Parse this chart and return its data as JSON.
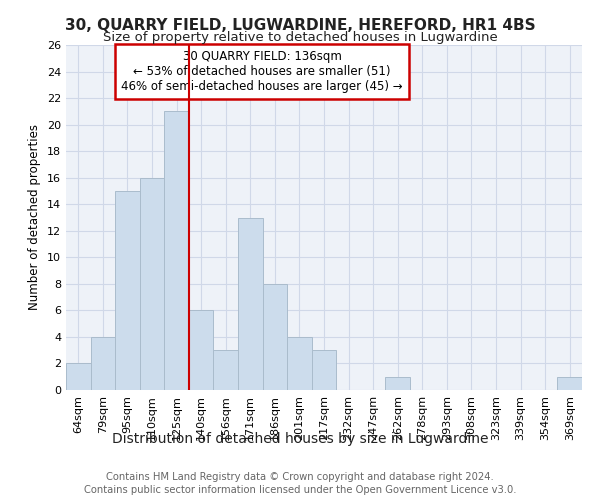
{
  "title": "30, QUARRY FIELD, LUGWARDINE, HEREFORD, HR1 4BS",
  "subtitle": "Size of property relative to detached houses in Lugwardine",
  "xlabel": "Distribution of detached houses by size in Lugwardine",
  "ylabel": "Number of detached properties",
  "categories": [
    "64sqm",
    "79sqm",
    "95sqm",
    "110sqm",
    "125sqm",
    "140sqm",
    "156sqm",
    "171sqm",
    "186sqm",
    "201sqm",
    "217sqm",
    "232sqm",
    "247sqm",
    "262sqm",
    "278sqm",
    "293sqm",
    "308sqm",
    "323sqm",
    "339sqm",
    "354sqm",
    "369sqm"
  ],
  "values": [
    2,
    4,
    15,
    16,
    21,
    6,
    3,
    13,
    8,
    4,
    3,
    0,
    0,
    1,
    0,
    0,
    0,
    0,
    0,
    0,
    1
  ],
  "bar_color": "#ccdcec",
  "bar_edgecolor": "#aabccc",
  "annotation_text": "30 QUARRY FIELD: 136sqm\n← 53% of detached houses are smaller (51)\n46% of semi-detached houses are larger (45) →",
  "annotation_box_edgecolor": "#cc0000",
  "annotation_box_facecolor": "#ffffff",
  "grid_color": "#d0d8e8",
  "background_color": "#eef2f8",
  "ylim": [
    0,
    26
  ],
  "yticks": [
    0,
    2,
    4,
    6,
    8,
    10,
    12,
    14,
    16,
    18,
    20,
    22,
    24,
    26
  ],
  "footer_line1": "Contains HM Land Registry data © Crown copyright and database right 2024.",
  "footer_line2": "Contains public sector information licensed under the Open Government Licence v3.0.",
  "title_fontsize": 11,
  "subtitle_fontsize": 9.5,
  "xlabel_fontsize": 10,
  "ylabel_fontsize": 8.5,
  "tick_fontsize": 8,
  "annotation_fontsize": 8.5,
  "footer_fontsize": 7.2
}
